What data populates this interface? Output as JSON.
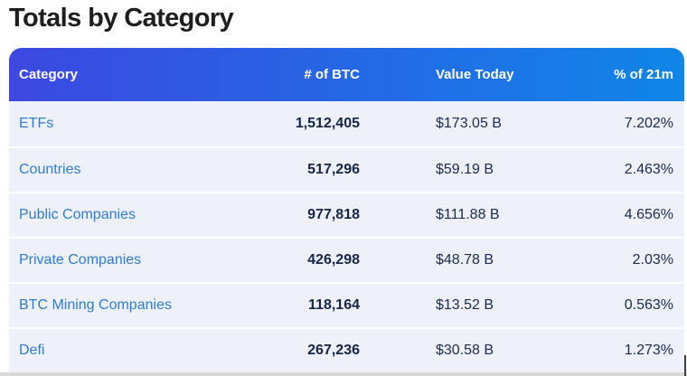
{
  "page": {
    "title": "Totals by Category"
  },
  "table": {
    "columns": [
      {
        "label": "Category"
      },
      {
        "label": "# of BTC"
      },
      {
        "label": "Value Today"
      },
      {
        "label": "% of 21m"
      }
    ],
    "rows": [
      {
        "category": "ETFs",
        "btc": "1,512,405",
        "value_today": "$173.05 B",
        "pct_of_21m": "7.202%"
      },
      {
        "category": "Countries",
        "btc": "517,296",
        "value_today": "$59.19 B",
        "pct_of_21m": "2.463%"
      },
      {
        "category": "Public Companies",
        "btc": "977,818",
        "value_today": "$111.88 B",
        "pct_of_21m": "4.656%"
      },
      {
        "category": "Private Companies",
        "btc": "426,298",
        "value_today": "$48.78 B",
        "pct_of_21m": "2.03%"
      },
      {
        "category": "BTC Mining Companies",
        "btc": "118,164",
        "value_today": "$13.52 B",
        "pct_of_21m": "0.563%"
      },
      {
        "category": "Defi",
        "btc": "267,236",
        "value_today": "$30.58 B",
        "pct_of_21m": "1.273%"
      }
    ]
  },
  "colors": {
    "header_gradient_start": "#3c48e1",
    "header_gradient_end": "#1086e8",
    "row_background": "#eef1f9",
    "row_separator": "#ffffff",
    "category_link": "#2e7dd5",
    "number_text": "#152449",
    "value_text": "#1a2a52",
    "title_text": "#1e1e1e",
    "bottom_strip": "#d8d8d8"
  }
}
